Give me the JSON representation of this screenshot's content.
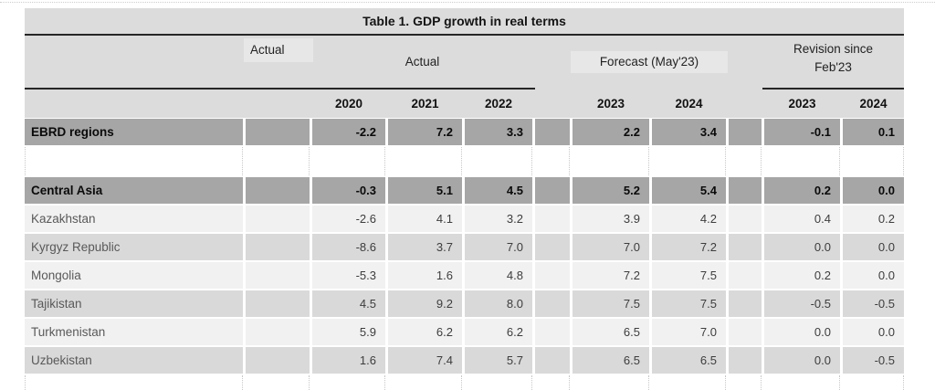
{
  "table": {
    "title": "Table 1. GDP growth in real terms",
    "header": {
      "actual_single": "Actual",
      "actual_span": "Actual",
      "forecast": "Forecast (May'23)",
      "revision_line1": "Revision since",
      "revision_line2": "Feb'23"
    },
    "years": {
      "actual": [
        "2020",
        "2021",
        "2022"
      ],
      "forecast": [
        "2023",
        "2024"
      ],
      "revision": [
        "2023",
        "2024"
      ]
    },
    "rows": [
      {
        "label": "EBRD regions",
        "style": "section",
        "values": [
          "-2.2",
          "7.2",
          "3.3",
          "2.2",
          "3.4",
          "-0.1",
          "0.1"
        ]
      },
      {
        "style": "gap"
      },
      {
        "label": "Central Asia",
        "style": "section",
        "values": [
          "-0.3",
          "5.1",
          "4.5",
          "5.2",
          "5.4",
          "0.2",
          "0.0"
        ]
      },
      {
        "label": "Kazakhstan",
        "style": "light",
        "values": [
          "-2.6",
          "4.1",
          "3.2",
          "3.9",
          "4.2",
          "0.4",
          "0.2"
        ]
      },
      {
        "label": "Kyrgyz Republic",
        "style": "shaded",
        "values": [
          "-8.6",
          "3.7",
          "7.0",
          "7.0",
          "7.2",
          "0.0",
          "0.0"
        ]
      },
      {
        "label": "Mongolia",
        "style": "light",
        "values": [
          "-5.3",
          "1.6",
          "4.8",
          "7.2",
          "7.5",
          "0.2",
          "0.0"
        ]
      },
      {
        "label": "Tajikistan",
        "style": "shaded",
        "values": [
          "4.5",
          "9.2",
          "8.0",
          "7.5",
          "7.5",
          "-0.5",
          "-0.5"
        ]
      },
      {
        "label": "Turkmenistan",
        "style": "light",
        "values": [
          "5.9",
          "6.2",
          "6.2",
          "6.5",
          "7.0",
          "0.0",
          "0.0"
        ]
      },
      {
        "label": "Uzbekistan",
        "style": "shaded",
        "values": [
          "1.6",
          "7.4",
          "5.7",
          "6.5",
          "6.5",
          "0.0",
          "-0.5"
        ]
      }
    ],
    "colors": {
      "header_bg": "#dcdcdc",
      "patch_bg": "#e7e7e7",
      "section_bg": "#a6a6a6",
      "light_bg": "#f1f1f1",
      "shaded_bg": "#d9d9d9",
      "rule": "#262626"
    }
  },
  "chart_data": {
    "type": "table",
    "title": "Table 1. GDP growth in real terms",
    "column_groups": [
      {
        "label": "Actual",
        "columns": [
          "2020",
          "2021",
          "2022"
        ]
      },
      {
        "label": "Forecast (May'23)",
        "columns": [
          "2023",
          "2024"
        ]
      },
      {
        "label": "Revision since Feb'23",
        "columns": [
          "2023",
          "2024"
        ]
      }
    ],
    "columns": [
      "2020",
      "2021",
      "2022",
      "2023",
      "2024",
      "2023",
      "2024"
    ],
    "rows": [
      {
        "label": "EBRD regions",
        "values": [
          -2.2,
          7.2,
          3.3,
          2.2,
          3.4,
          -0.1,
          0.1
        ]
      },
      {
        "label": "Central Asia",
        "values": [
          -0.3,
          5.1,
          4.5,
          5.2,
          5.4,
          0.2,
          0.0
        ]
      },
      {
        "label": "Kazakhstan",
        "values": [
          -2.6,
          4.1,
          3.2,
          3.9,
          4.2,
          0.4,
          0.2
        ]
      },
      {
        "label": "Kyrgyz Republic",
        "values": [
          -8.6,
          3.7,
          7.0,
          7.0,
          7.2,
          0.0,
          0.0
        ]
      },
      {
        "label": "Mongolia",
        "values": [
          -5.3,
          1.6,
          4.8,
          7.2,
          7.5,
          0.2,
          0.0
        ]
      },
      {
        "label": "Tajikistan",
        "values": [
          4.5,
          9.2,
          8.0,
          7.5,
          7.5,
          -0.5,
          -0.5
        ]
      },
      {
        "label": "Turkmenistan",
        "values": [
          5.9,
          6.2,
          6.2,
          6.5,
          7.0,
          0.0,
          0.0
        ]
      },
      {
        "label": "Uzbekistan",
        "values": [
          1.6,
          7.4,
          5.7,
          6.5,
          6.5,
          0.0,
          -0.5
        ]
      }
    ]
  }
}
